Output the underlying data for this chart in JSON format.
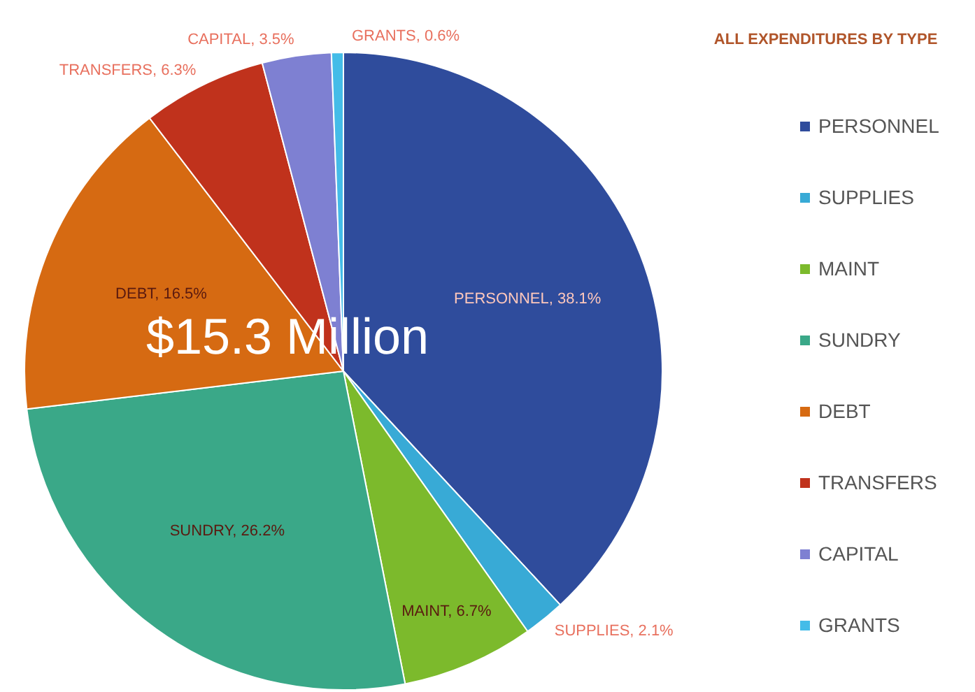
{
  "chart_data": {
    "type": "pie",
    "title": "ALL EXPENDITURES BY TYPE",
    "categories": [
      "PERSONNEL",
      "SUPPLIES",
      "MAINT",
      "SUNDRY",
      "DEBT",
      "TRANSFERS",
      "CAPITAL",
      "GRANTS"
    ],
    "values": [
      38.1,
      2.1,
      6.7,
      26.2,
      16.5,
      6.3,
      3.5,
      0.6
    ],
    "colors": [
      "#2f4c9c",
      "#38aad6",
      "#7cba2c",
      "#3aa888",
      "#d66a12",
      "#c0321c",
      "#7e80d2",
      "#44bce8"
    ],
    "value_labels": [
      "PERSONNEL, 38.1%",
      "SUPPLIES, 2.1%",
      "MAINT, 6.7%",
      "SUNDRY, 26.2%",
      "DEBT, 16.5%",
      "TRANSFERS, 6.3%",
      "CAPITAL, 3.5%",
      "GRANTS, 0.6%"
    ],
    "annotations": [
      "$15.3 Million"
    ],
    "legend": "right"
  }
}
